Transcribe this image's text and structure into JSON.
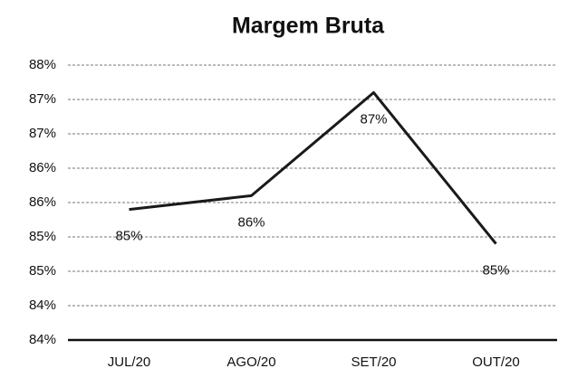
{
  "chart_data": {
    "type": "line",
    "title": "Margem Bruta",
    "categories": [
      "JUL/20",
      "AGO/20",
      "SET/20",
      "OUT/20"
    ],
    "series": [
      {
        "name": "Margem Bruta",
        "color": "#1a1a1a",
        "values": [
          85.4,
          85.6,
          87.1,
          84.9
        ],
        "value_labels": [
          "85%",
          "86%",
          "87%",
          "85%"
        ]
      }
    ],
    "ylim": [
      83.5,
      87.5
    ],
    "yticks": [
      {
        "value": 83.5,
        "label": "84%"
      },
      {
        "value": 84,
        "label": "84%"
      },
      {
        "value": 84.5,
        "label": "85%"
      },
      {
        "value": 85,
        "label": "85%"
      },
      {
        "value": 85.5,
        "label": "86%"
      },
      {
        "value": 86,
        "label": "86%"
      },
      {
        "value": 86.5,
        "label": "87%"
      },
      {
        "value": 87,
        "label": "87%"
      },
      {
        "value": 87.5,
        "label": "88%"
      }
    ],
    "grid": true
  }
}
